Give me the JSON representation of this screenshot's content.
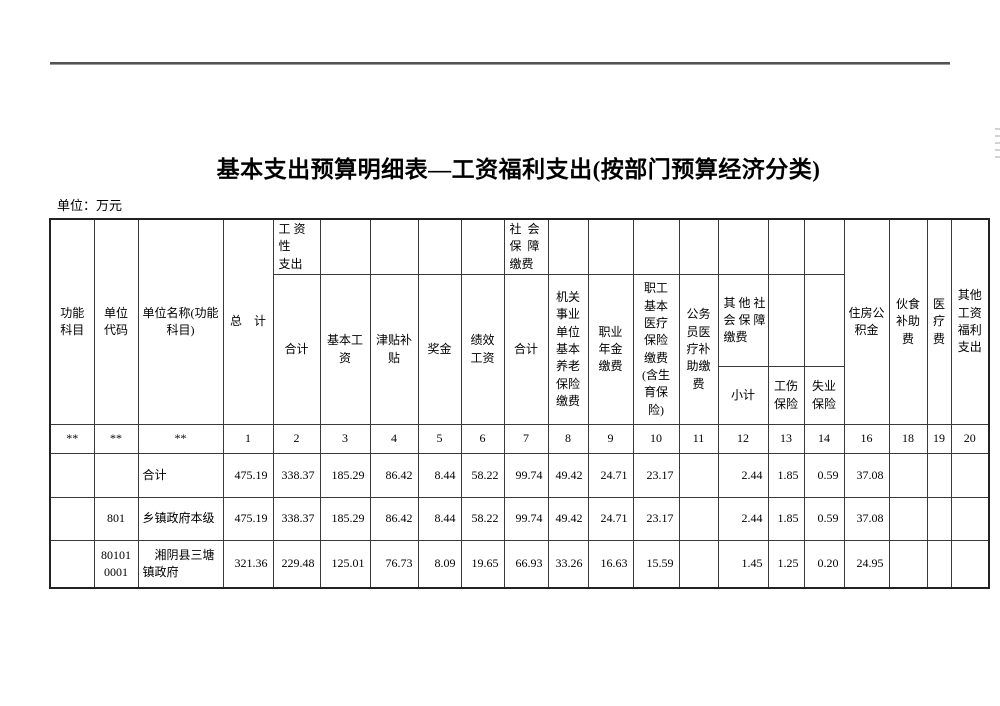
{
  "page": {
    "title": "基本支出预算明细表—工资福利支出(按部门预算经济分类)",
    "unit_label": "单位：万元"
  },
  "table": {
    "header": {
      "func_subject": "功能\n科目",
      "unit_code": "单位\n代码",
      "unit_name": "单位名称(功能\n科目)",
      "grand_total": "总　计",
      "wage_group": "工 资 性\n支出",
      "wage_total": "合计",
      "base_wage": "基本工\n资",
      "allowance": "津贴补\n贴",
      "bonus": "奖金",
      "perf_wage": "绩效\n工资",
      "social_group": "社  会\n保  障\n缴费",
      "social_total": "合计",
      "pension": "机关\n事业\n单位\n基本\n养老\n保险\n缴费",
      "annuity": "职业\n年金\n缴费",
      "medical_ins": "职工\n基本\n医疗\n保险\n缴费\n(含生\n育保\n险)",
      "civil_servant_medical": "公务\n员医\n疗补\n助缴\n费",
      "other_social_group": "其 他 社\n会 保 障\n缴费",
      "other_social_subtotal": "小计",
      "injury_ins": "工伤\n保险",
      "unemployment_ins": "失业\n保险",
      "housing_fund": "住房公\n积金",
      "meal_subsidy": "伙食\n补助\n费",
      "medical_fee": "医\n疗\n费",
      "other_welfare": "其他\n工资\n福利\n支出"
    },
    "number_row": [
      "**",
      "**",
      "**",
      "1",
      "2",
      "3",
      "4",
      "5",
      "6",
      "7",
      "8",
      "9",
      "10",
      "11",
      "12",
      "13",
      "14",
      "16",
      "18",
      "19",
      "20"
    ],
    "rows": [
      [
        "",
        "",
        "合计",
        "475.19",
        "338.37",
        "185.29",
        "86.42",
        "8.44",
        "58.22",
        "99.74",
        "49.42",
        "24.71",
        "23.17",
        "",
        "2.44",
        "1.85",
        "0.59",
        "37.08",
        "",
        "",
        ""
      ],
      [
        "",
        "801",
        "乡镇政府本级",
        "475.19",
        "338.37",
        "185.29",
        "86.42",
        "8.44",
        "58.22",
        "99.74",
        "49.42",
        "24.71",
        "23.17",
        "",
        "2.44",
        "1.85",
        "0.59",
        "37.08",
        "",
        "",
        ""
      ],
      [
        "",
        "80101\n0001",
        "　湘阴县三塘\n镇政府",
        "321.36",
        "229.48",
        "125.01",
        "76.73",
        "8.09",
        "19.65",
        "66.93",
        "33.26",
        "16.63",
        "15.59",
        "",
        "1.45",
        "1.25",
        "0.20",
        "24.95",
        "",
        "",
        ""
      ]
    ]
  }
}
